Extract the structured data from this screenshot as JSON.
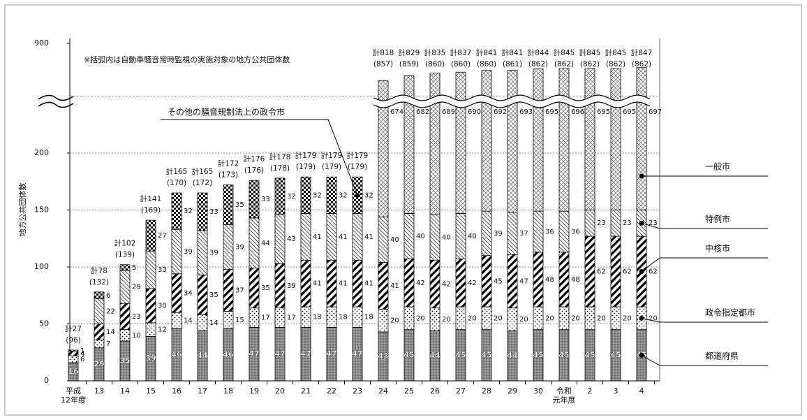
{
  "chart_data": {
    "type": "stacked-bar",
    "annotation": "※括弧内は自動車騒音常時監視の実施対象の地方公共団体数",
    "y_label": "地方公共団体数",
    "categories": [
      "平成\n12年度",
      "13",
      "14",
      "15",
      "16",
      "17",
      "18",
      "19",
      "20",
      "21",
      "22",
      "23",
      "24",
      "25",
      "26",
      "27",
      "28",
      "29",
      "30",
      "令和\n元年度",
      "2",
      "3",
      "4"
    ],
    "ylim": [
      0,
      900
    ],
    "yticks": [
      0,
      50,
      100,
      150,
      200,
      900
    ],
    "axis_break": [
      250,
      800
    ],
    "grid": true,
    "series": [
      {
        "name": "都道府県",
        "pattern": "dots-dark",
        "color": "#7a7a7a",
        "values": [
          16,
          29,
          35,
          39,
          46,
          44,
          46,
          47,
          47,
          47,
          47,
          47,
          43,
          45,
          44,
          45,
          45,
          44,
          45,
          45,
          45,
          45,
          45
        ]
      },
      {
        "name": "政令指定都市",
        "pattern": "dots",
        "color": "#ffffff",
        "values": [
          6,
          7,
          10,
          12,
          14,
          14,
          15,
          17,
          17,
          18,
          18,
          18,
          20,
          20,
          20,
          20,
          20,
          20,
          20,
          20,
          20,
          20,
          20
        ]
      },
      {
        "name": "中核市",
        "pattern": "stripes",
        "color": "#000000",
        "values": [
          4,
          14,
          23,
          30,
          34,
          35,
          37,
          35,
          39,
          41,
          41,
          41,
          41,
          42,
          42,
          42,
          45,
          47,
          48,
          48,
          62,
          62,
          62
        ]
      },
      {
        "name": "特例市",
        "pattern": "hatch",
        "color": "#555555",
        "values": [
          null,
          22,
          29,
          33,
          39,
          39,
          39,
          44,
          43,
          41,
          41,
          41,
          40,
          40,
          40,
          40,
          39,
          37,
          36,
          36,
          23,
          23,
          23
        ]
      },
      {
        "name": "一般市",
        "pattern": "crosshatch",
        "color": "#888888",
        "values": [
          null,
          null,
          null,
          null,
          null,
          null,
          null,
          null,
          null,
          null,
          null,
          null,
          674,
          682,
          689,
          690,
          692,
          693,
          695,
          696,
          695,
          695,
          697
        ]
      },
      {
        "name": "その他の騒音規制法上の政令市",
        "pattern": "checker",
        "color": "#000000",
        "values": [
          1,
          6,
          5,
          27,
          32,
          33,
          35,
          33,
          32,
          32,
          32,
          32,
          null,
          null,
          null,
          null,
          null,
          null,
          null,
          null,
          null,
          null,
          null
        ]
      }
    ],
    "total_labels": [
      "計27",
      "計78",
      "計102",
      "計141",
      "計165",
      "計165",
      "計172",
      "計176",
      "計178",
      "計179",
      "計179",
      "計179",
      "計818",
      "計829",
      "計835",
      "計837",
      "計841",
      "計841",
      "計844",
      "計845",
      "計845",
      "計845",
      "計847"
    ],
    "monitored_labels": [
      "(96)",
      "(132)",
      "(139)",
      "(169)",
      "(170)",
      "(172)",
      "(173)",
      "(176)",
      "(178)",
      "(179)",
      "(179)",
      "(179)",
      "(857)",
      "(859)",
      "(860)",
      "(860)",
      "(860)",
      "(861)",
      "(862)",
      "(862)",
      "(862)",
      "(862)",
      "(862)"
    ]
  }
}
